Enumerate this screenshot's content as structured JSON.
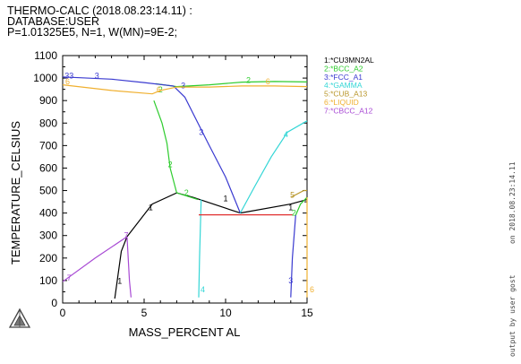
{
  "header": {
    "line1": "THERMO-CALC (2018.08.23:14.11) :",
    "line2": "DATABASE:USER",
    "line3": "P=1.01325E5, N=1, W(MN)=9E-2;"
  },
  "side_text": {
    "date": "on 2018.08.23:14.11",
    "user": "output by user gost"
  },
  "logo": "triangle-logo",
  "chart_data": {
    "type": "line",
    "title": "",
    "xlabel": "MASS_PERCENT AL",
    "ylabel": "TEMPERATURE_CELSIUS",
    "xlim": [
      0,
      15
    ],
    "ylim": [
      0,
      1100
    ],
    "xticks": [
      "0",
      "5",
      "10",
      "15"
    ],
    "yticks": [
      "0",
      "100",
      "200",
      "300",
      "400",
      "500",
      "600",
      "700",
      "800",
      "900",
      "1000",
      "1100"
    ],
    "grid": false,
    "legend_position": "right",
    "series": [
      {
        "name": "1:*CU3MN2AL",
        "color": "#000000",
        "label_marks": [
          {
            "text": "1",
            "x": 3.5,
            "y": 98
          },
          {
            "text": "1",
            "x": 5.4,
            "y": 425
          },
          {
            "text": "1",
            "x": 10.0,
            "y": 465
          },
          {
            "text": "1",
            "x": 14.0,
            "y": 425
          }
        ],
        "lines": [
          [
            [
              3.2,
              20
            ],
            [
              3.6,
              230
            ],
            [
              3.95,
              295
            ]
          ],
          [
            [
              3.95,
              295
            ],
            [
              5.5,
              440
            ],
            [
              7.0,
              490
            ],
            [
              8.0,
              470
            ],
            [
              10.9,
              400
            ]
          ],
          [
            [
              10.9,
              400
            ],
            [
              14.0,
              440
            ],
            [
              15.0,
              460
            ]
          ]
        ]
      },
      {
        "name": "2:*BCC_A2",
        "color": "#2ecc2e",
        "label_marks": [
          {
            "text": "2",
            "x": 6.0,
            "y": 948
          },
          {
            "text": "2",
            "x": 6.6,
            "y": 615
          },
          {
            "text": "2",
            "x": 7.6,
            "y": 490
          },
          {
            "text": "2",
            "x": 11.4,
            "y": 990
          },
          {
            "text": "2",
            "x": 14.2,
            "y": 400
          }
        ],
        "lines": [
          [
            [
              5.7,
              975
            ],
            [
              7.0,
              962
            ],
            [
              9.0,
              970
            ],
            [
              11.0,
              982
            ],
            [
              13.0,
              985
            ],
            [
              15.0,
              983
            ]
          ],
          [
            [
              5.6,
              900
            ],
            [
              6.1,
              800
            ],
            [
              6.4,
              710
            ],
            [
              6.6,
              600
            ],
            [
              7.0,
              490
            ]
          ],
          [
            [
              7.0,
              490
            ],
            [
              8.3,
              460
            ]
          ],
          [
            [
              14.3,
              390
            ],
            [
              14.6,
              440
            ],
            [
              15.0,
              470
            ]
          ]
        ]
      },
      {
        "name": "3:*FCC_A1",
        "color": "#3a3ad0",
        "label_marks": [
          {
            "text": "33",
            "x": 0.4,
            "y": 1010
          },
          {
            "text": "3",
            "x": 2.1,
            "y": 1010
          },
          {
            "text": "3",
            "x": 7.4,
            "y": 967
          },
          {
            "text": "3",
            "x": 8.5,
            "y": 760
          },
          {
            "text": "3",
            "x": 14.0,
            "y": 100
          }
        ],
        "lines": [
          [
            [
              0,
              1005
            ],
            [
              3.0,
              995
            ],
            [
              5.0,
              980
            ],
            [
              6.8,
              965
            ],
            [
              7.5,
              915
            ],
            [
              9.0,
              700
            ],
            [
              10.0,
              560
            ],
            [
              10.9,
              400
            ]
          ],
          [
            [
              14.0,
              25
            ],
            [
              14.1,
              200
            ],
            [
              14.3,
              390
            ]
          ]
        ]
      },
      {
        "name": "4:*GAMMA",
        "color": "#33d6d6",
        "label_marks": [
          {
            "text": "4",
            "x": 8.6,
            "y": 60
          },
          {
            "text": "4",
            "x": 13.7,
            "y": 750
          }
        ],
        "lines": [
          [
            [
              8.35,
              25
            ],
            [
              8.4,
              200
            ],
            [
              8.5,
              460
            ]
          ],
          [
            [
              10.9,
              400
            ],
            [
              11.8,
              520
            ],
            [
              12.8,
              650
            ],
            [
              13.8,
              760
            ],
            [
              15.0,
              810
            ]
          ]
        ]
      },
      {
        "name": "5:*CUB_A13",
        "color": "#b8962a",
        "label_marks": [
          {
            "text": "5",
            "x": 14.1,
            "y": 480
          }
        ],
        "lines": [
          [
            [
              14.0,
              470
            ],
            [
              14.8,
              500
            ],
            [
              15.0,
              500
            ]
          ]
        ]
      },
      {
        "name": "6:*LIQUID",
        "color": "#f0b030",
        "label_marks": [
          {
            "text": "6",
            "x": 0.3,
            "y": 985
          },
          {
            "text": "6",
            "x": 5.9,
            "y": 948
          },
          {
            "text": "6",
            "x": 12.6,
            "y": 985
          },
          {
            "text": "6",
            "x": 15.3,
            "y": 60
          }
        ],
        "lines": [
          [
            [
              0,
              970
            ],
            [
              3.0,
              945
            ],
            [
              5.5,
              930
            ],
            [
              6.0,
              945
            ],
            [
              7.0,
              960
            ],
            [
              9.0,
              960
            ],
            [
              11.0,
              965
            ],
            [
              13.0,
              965
            ],
            [
              15.0,
              962
            ]
          ],
          [
            [
              15.0,
              25
            ],
            [
              15.0,
              470
            ]
          ]
        ]
      },
      {
        "name": "7:*CBCC_A12",
        "color": "#a84ad4",
        "label_marks": [
          {
            "text": "7",
            "x": 0.4,
            "y": 112
          },
          {
            "text": "7",
            "x": 3.9,
            "y": 300
          }
        ],
        "lines": [
          [
            [
              0,
              95
            ],
            [
              2.0,
              200
            ],
            [
              3.95,
              295
            ]
          ],
          [
            [
              3.95,
              295
            ],
            [
              4.1,
              100
            ],
            [
              4.2,
              25
            ]
          ]
        ]
      },
      {
        "name": "",
        "color": "#e03030",
        "label_marks": [],
        "lines": [
          [
            [
              8.35,
              392
            ],
            [
              14.1,
              392
            ]
          ]
        ]
      }
    ]
  }
}
